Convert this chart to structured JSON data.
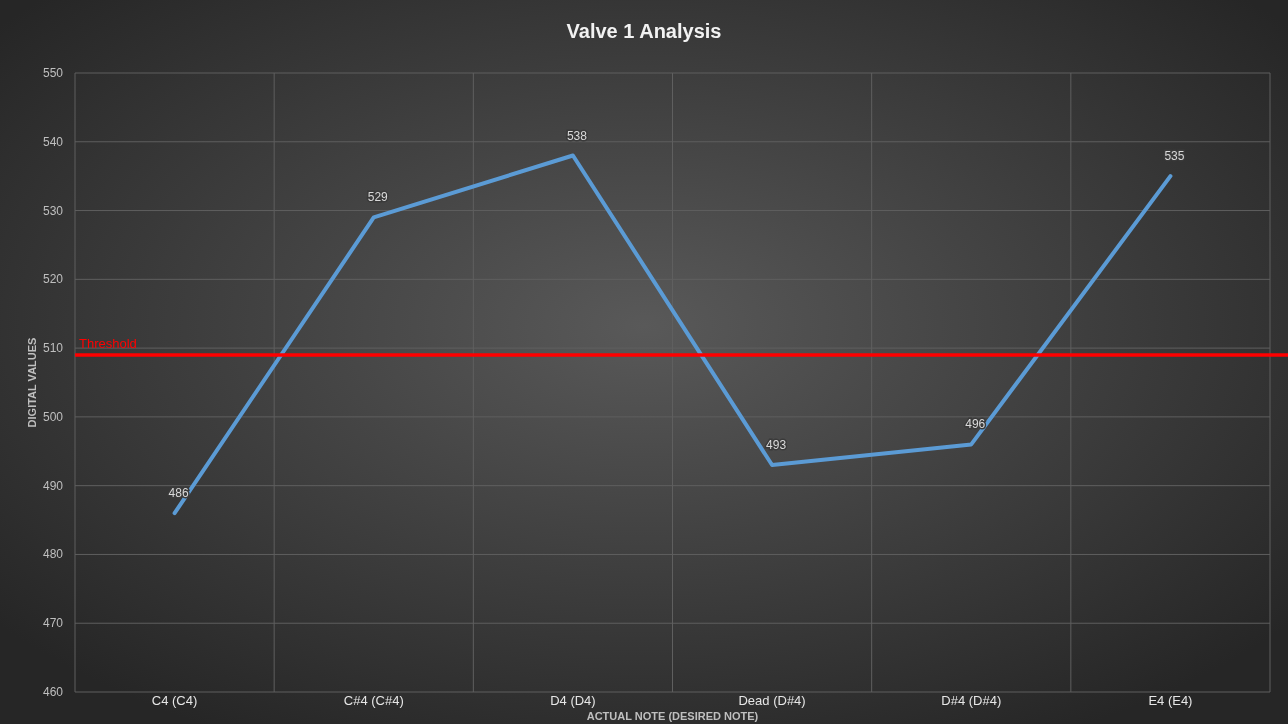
{
  "chart_data": {
    "type": "line",
    "title": "Valve 1 Analysis",
    "xlabel": "ACTUAL NOTE (DESIRED NOTE)",
    "ylabel": "DIGITAL VALUES",
    "categories": [
      "C4 (C4)",
      "C#4 (C#4)",
      "D4 (D4)",
      "Dead (D#4)",
      "D#4 (D#4)",
      "E4 (E4)"
    ],
    "series": [
      {
        "color": "#5b9bd5",
        "values": [
          486,
          529,
          538,
          493,
          496,
          535
        ]
      }
    ],
    "ylim": [
      460,
      550
    ],
    "yticks": [
      460,
      470,
      480,
      490,
      500,
      510,
      520,
      530,
      540,
      550
    ],
    "grid": true,
    "data_labels": true,
    "marker": "none",
    "line_style": "solid",
    "ref_lines": [
      {
        "axis": "y",
        "value": 509,
        "label": "Threshold",
        "color": "#ff0000",
        "line_style": "solid"
      }
    ]
  }
}
